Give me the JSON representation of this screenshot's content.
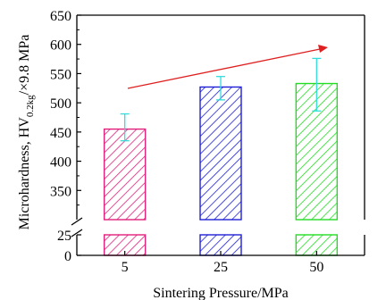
{
  "chart_data": {
    "type": "bar",
    "categories": [
      "5",
      "25",
      "50"
    ],
    "values": [
      455,
      527,
      533
    ],
    "errors_upper": [
      26,
      18,
      43
    ],
    "errors_lower": [
      20,
      22,
      47
    ],
    "xlabel": "Sintering Pressure/MPa",
    "ylabel": {
      "prefix": "Microhardness, HV",
      "subscript": "0.2kg",
      "suffix": "/×9.8 MPa"
    },
    "ylim_upper": [
      300,
      650
    ],
    "ylim_lower": [
      0,
      25
    ],
    "yticks_upper": [
      350,
      400,
      450,
      500,
      550,
      600,
      650
    ],
    "yticks_lower": [
      0,
      25
    ],
    "axis_break": true,
    "hatch": "diagonal",
    "series_colors": [
      "#e0207a",
      "#1f1fd6",
      "#22dd22"
    ],
    "errorbar_color": "#33dddd",
    "trend_arrow_color": "#e02020"
  }
}
